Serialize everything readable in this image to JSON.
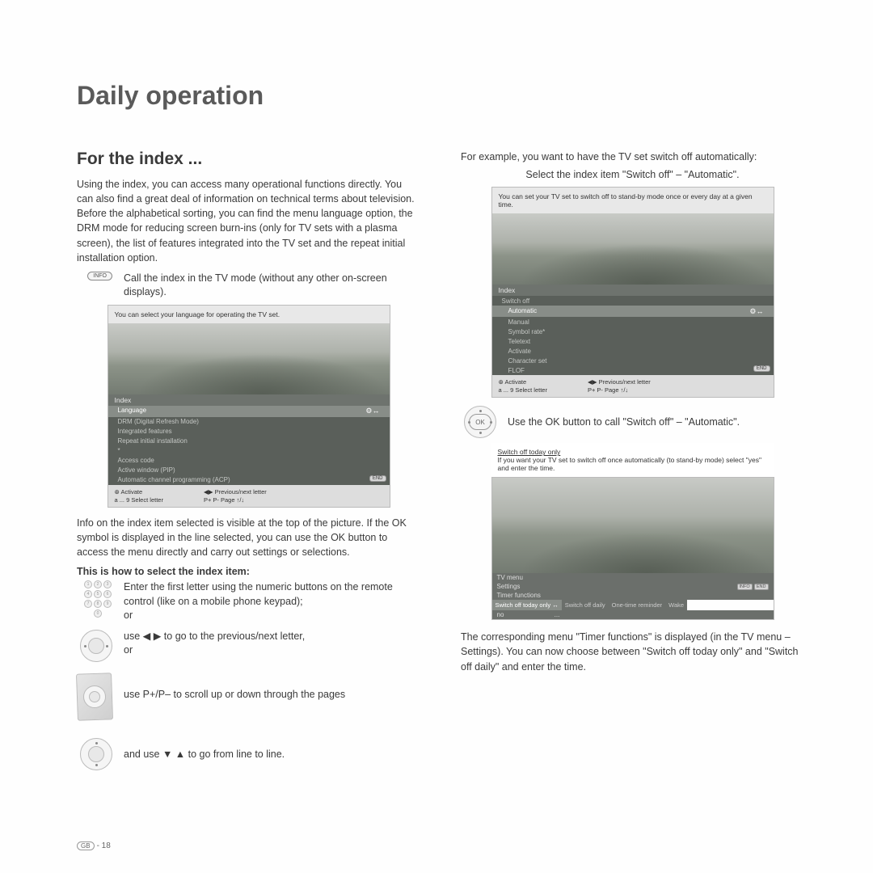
{
  "page": {
    "title": "Daily operation",
    "section_title": "For the index ...",
    "intro": "Using the index, you can access many operational functions directly. You can also find a great deal of information on technical terms about television. Before the alphabetical sorting, you can find the menu language option, the DRM mode for reducing screen burn-ins (only for TV sets with a plasma screen), the list of features integrated into the TV set and the repeat initial installation option.",
    "info_instruction": "Call the index in the TV mode (without any other on-screen displays).",
    "after_sc1": "Info on the index item selected is visible at the top of the picture. If the OK symbol is displayed in the line selected, you can use the OK button to access the menu directly and carry out settings or selections.",
    "howto_title": "This is how to select the index item:",
    "step_numpad": "Enter the first letter using the numeric buttons on the remote control (like on a mobile phone keypad);",
    "or": "or",
    "step_leftright": "use  ◀  ▶  to go to the previous/next letter,",
    "step_page": "use P+/P– to scroll up or down through the pages",
    "step_updown": "and use  ▼  ▲  to go from line to line.",
    "example_intro": "For example, you want to have the TV set switch off automatically:",
    "example_select": "Select the index item \"Switch off\" – \"Automatic\".",
    "ok_instruction": "Use the OK button to call \"Switch off\" – \"Automatic\".",
    "conclusion": "The corresponding menu \"Timer functions\" is displayed (in the TV menu – Settings). You can now choose between \"Switch off today only\" and \"Switch off daily\" and enter the time.",
    "page_number": "- 18",
    "gb_label": "GB"
  },
  "screenshot1": {
    "hint": "You can select your language for operating the TV set.",
    "header": "Index",
    "items": [
      "Language",
      "DRM (Digital Refresh Mode)",
      "Integrated features",
      "Repeat initial installation",
      "*",
      "Access code",
      "Active window (PIP)",
      "Automatic channel programming (ACP)"
    ],
    "selected_index": 0,
    "gear": "⚙↔",
    "end": "END",
    "footer": {
      "activate": "⊛ Activate",
      "select_letter": "a ... 9  Select letter",
      "prev_next": "◀▶ Previous/next letter",
      "page": "P+ P- Page ↑/↓"
    }
  },
  "screenshot2": {
    "hint": "You can set your TV set to switch off to stand-by mode once or every day at a given time.",
    "header": "Index",
    "group": "Switch off",
    "items": [
      "Automatic",
      "Manual",
      "Symbol rate*",
      "Teletext",
      "Activate",
      "Character set",
      "FLOF"
    ],
    "selected_index": 0,
    "gear": "⚙↔",
    "end": "END",
    "footer": {
      "activate": "⊛ Activate",
      "select_letter": "a ... 9  Select letter",
      "prev_next": "◀▶ Previous/next letter",
      "page": "P+ P- Page ↑/↓"
    }
  },
  "screenshot3": {
    "title": "Switch off today only",
    "hint": "If you want your TV set to switch off once automatically (to stand-by mode) select \"yes\" and enter the time.",
    "breadcrumb": [
      "TV menu",
      "Settings",
      "Timer functions"
    ],
    "tabs": [
      "Switch off today only",
      "Switch off daily",
      "One-time reminder",
      "Wake"
    ],
    "active_tab": 0,
    "row2_label": "no",
    "row2_val": "...",
    "info_badge": "INFO",
    "end_badge": "END",
    "arrows": "↔"
  },
  "info_label": "INFO",
  "ok_label": "OK"
}
